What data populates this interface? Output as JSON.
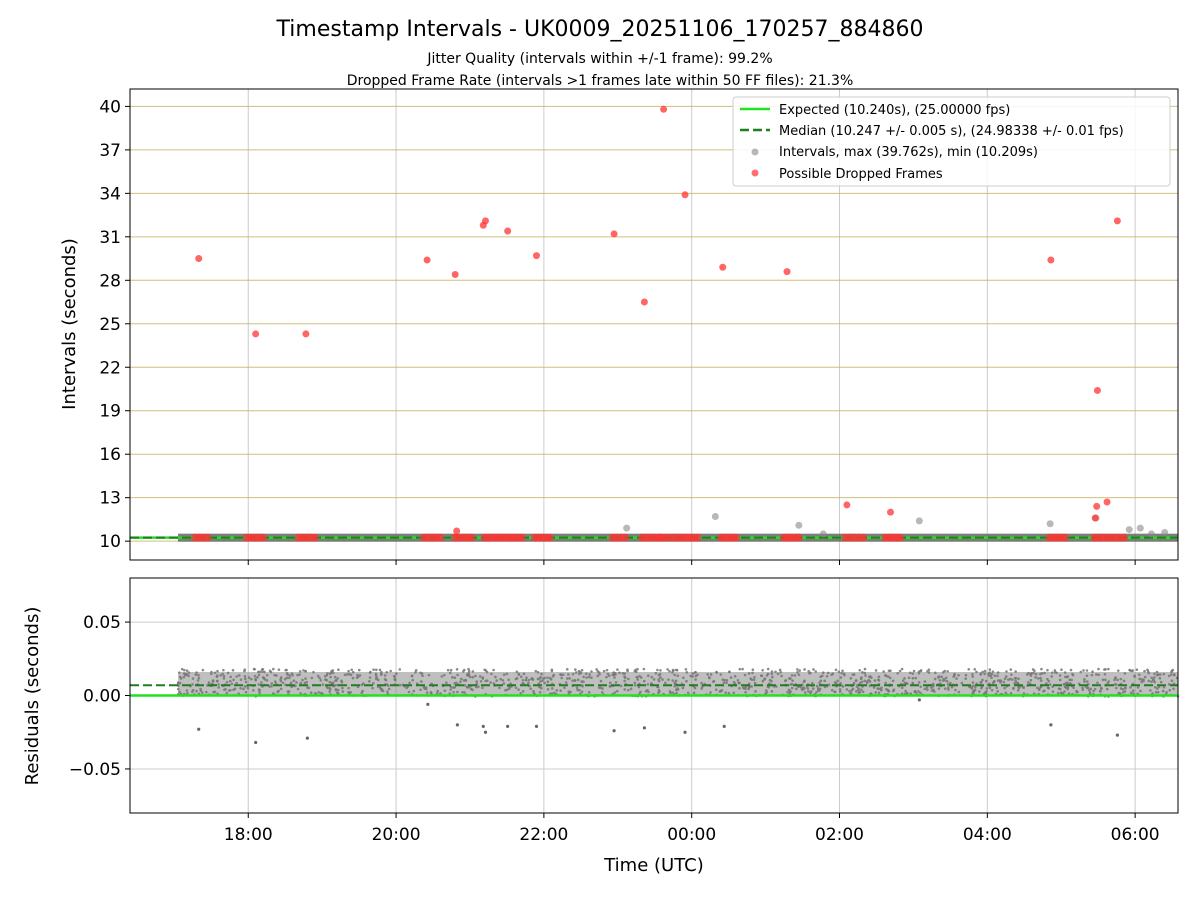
{
  "chart_data": {
    "title": "Timestamp Intervals - UK0009_20251106_170257_884860",
    "subtitle_lines": [
      "Jitter Quality (intervals within +/-1 frame): 99.2%",
      "Dropped Frame Rate (intervals >1 frames late within 50 FF files): 21.3%"
    ],
    "xlabel": "Time (UTC)",
    "x_range_hours": [
      16.4,
      30.58
    ],
    "x_ticks": [
      {
        "label": "18:00",
        "h": 18
      },
      {
        "label": "20:00",
        "h": 20
      },
      {
        "label": "22:00",
        "h": 22
      },
      {
        "label": "00:00",
        "h": 24
      },
      {
        "label": "02:00",
        "h": 26
      },
      {
        "label": "04:00",
        "h": 28
      },
      {
        "label": "06:00",
        "h": 30
      }
    ],
    "panels": [
      {
        "type": "scatter",
        "name": "intervals",
        "ylabel": "Intervals (seconds)",
        "ylim": [
          8.7,
          41.2
        ],
        "y_ticks": [
          10,
          13,
          16,
          19,
          22,
          25,
          28,
          31,
          34,
          37,
          40
        ],
        "expected_interval": 10.24,
        "median_interval": 10.247,
        "data_start_hour": 17.05,
        "data_end_hour": 30.58,
        "series": [
          {
            "name": "Expected (10.240s), (25.00000 fps)",
            "kind": "line",
            "color": "#22e022",
            "style": "solid",
            "y": 10.24
          },
          {
            "name": "Median (10.247 +/- 0.005 s), (24.98338 +/- 0.01 fps)",
            "kind": "line",
            "color": "#1f7f1f",
            "style": "dashed",
            "y": 10.247
          },
          {
            "name": "Intervals, max (39.762s), min (10.209s)",
            "kind": "scatter",
            "color": "#888888",
            "points": [
              {
                "h": 23.12,
                "y": 10.9
              },
              {
                "h": 24.32,
                "y": 11.7
              },
              {
                "h": 25.45,
                "y": 11.1
              },
              {
                "h": 25.78,
                "y": 10.5
              },
              {
                "h": 27.08,
                "y": 11.4
              },
              {
                "h": 28.85,
                "y": 11.2
              },
              {
                "h": 29.47,
                "y": 11.6
              },
              {
                "h": 29.92,
                "y": 10.8
              },
              {
                "h": 30.07,
                "y": 10.9
              },
              {
                "h": 30.22,
                "y": 10.5
              },
              {
                "h": 30.4,
                "y": 10.6
              }
            ]
          },
          {
            "name": "Possible Dropped Frames",
            "kind": "scatter",
            "color": "#ff3333",
            "points": [
              {
                "h": 17.33,
                "y": 29.5
              },
              {
                "h": 18.1,
                "y": 24.3
              },
              {
                "h": 18.78,
                "y": 24.3
              },
              {
                "h": 20.42,
                "y": 29.4
              },
              {
                "h": 20.8,
                "y": 28.4
              },
              {
                "h": 20.82,
                "y": 10.7
              },
              {
                "h": 21.18,
                "y": 31.8
              },
              {
                "h": 21.21,
                "y": 32.1
              },
              {
                "h": 21.51,
                "y": 31.4
              },
              {
                "h": 21.9,
                "y": 29.7
              },
              {
                "h": 22.95,
                "y": 31.2
              },
              {
                "h": 23.36,
                "y": 26.5
              },
              {
                "h": 23.62,
                "y": 39.8
              },
              {
                "h": 23.91,
                "y": 33.9
              },
              {
                "h": 24.42,
                "y": 28.9
              },
              {
                "h": 25.29,
                "y": 28.6
              },
              {
                "h": 26.1,
                "y": 12.5
              },
              {
                "h": 26.69,
                "y": 12.0
              },
              {
                "h": 28.86,
                "y": 29.4
              },
              {
                "h": 29.46,
                "y": 11.6
              },
              {
                "h": 29.48,
                "y": 12.4
              },
              {
                "h": 29.49,
                "y": 20.4
              },
              {
                "h": 29.62,
                "y": 12.7
              },
              {
                "h": 29.76,
                "y": 32.1
              }
            ],
            "clusters_at_expected": [
              [
                17.28,
                17.45
              ],
              [
                17.98,
                18.2
              ],
              [
                18.68,
                18.9
              ],
              [
                20.38,
                20.6
              ],
              [
                20.8,
                21.02
              ],
              [
                21.2,
                21.45
              ],
              [
                21.5,
                21.7
              ],
              [
                21.88,
                22.08
              ],
              [
                22.93,
                23.1
              ],
              [
                23.33,
                23.55
              ],
              [
                23.58,
                23.82
              ],
              [
                23.87,
                24.08
              ],
              [
                24.4,
                24.6
              ],
              [
                25.25,
                25.45
              ],
              [
                26.08,
                26.32
              ],
              [
                26.62,
                26.82
              ],
              [
                28.84,
                29.05
              ],
              [
                29.45,
                29.85
              ]
            ]
          }
        ]
      },
      {
        "type": "scatter",
        "name": "residuals",
        "ylabel": "Residuals (seconds)",
        "ylim": [
          -0.08,
          0.08
        ],
        "y_ticks": [
          {
            "value": 0.05,
            "label": "0.05"
          },
          {
            "value": 0.0,
            "label": "0.00"
          },
          {
            "value": -0.05,
            "label": "−0.05"
          }
        ],
        "band_min": 0.0,
        "band_max": 0.016,
        "median_residual": 0.007,
        "outliers": [
          {
            "h": 17.33,
            "y": -0.023
          },
          {
            "h": 18.1,
            "y": -0.032
          },
          {
            "h": 18.8,
            "y": -0.029
          },
          {
            "h": 20.43,
            "y": -0.006
          },
          {
            "h": 20.83,
            "y": -0.02
          },
          {
            "h": 21.18,
            "y": -0.021
          },
          {
            "h": 21.21,
            "y": -0.025
          },
          {
            "h": 21.51,
            "y": -0.021
          },
          {
            "h": 21.9,
            "y": -0.021
          },
          {
            "h": 22.95,
            "y": -0.024
          },
          {
            "h": 23.36,
            "y": -0.022
          },
          {
            "h": 23.91,
            "y": -0.025
          },
          {
            "h": 24.44,
            "y": -0.021
          },
          {
            "h": 27.08,
            "y": -0.003
          },
          {
            "h": 28.86,
            "y": -0.02
          },
          {
            "h": 29.76,
            "y": -0.027
          }
        ]
      }
    ]
  }
}
